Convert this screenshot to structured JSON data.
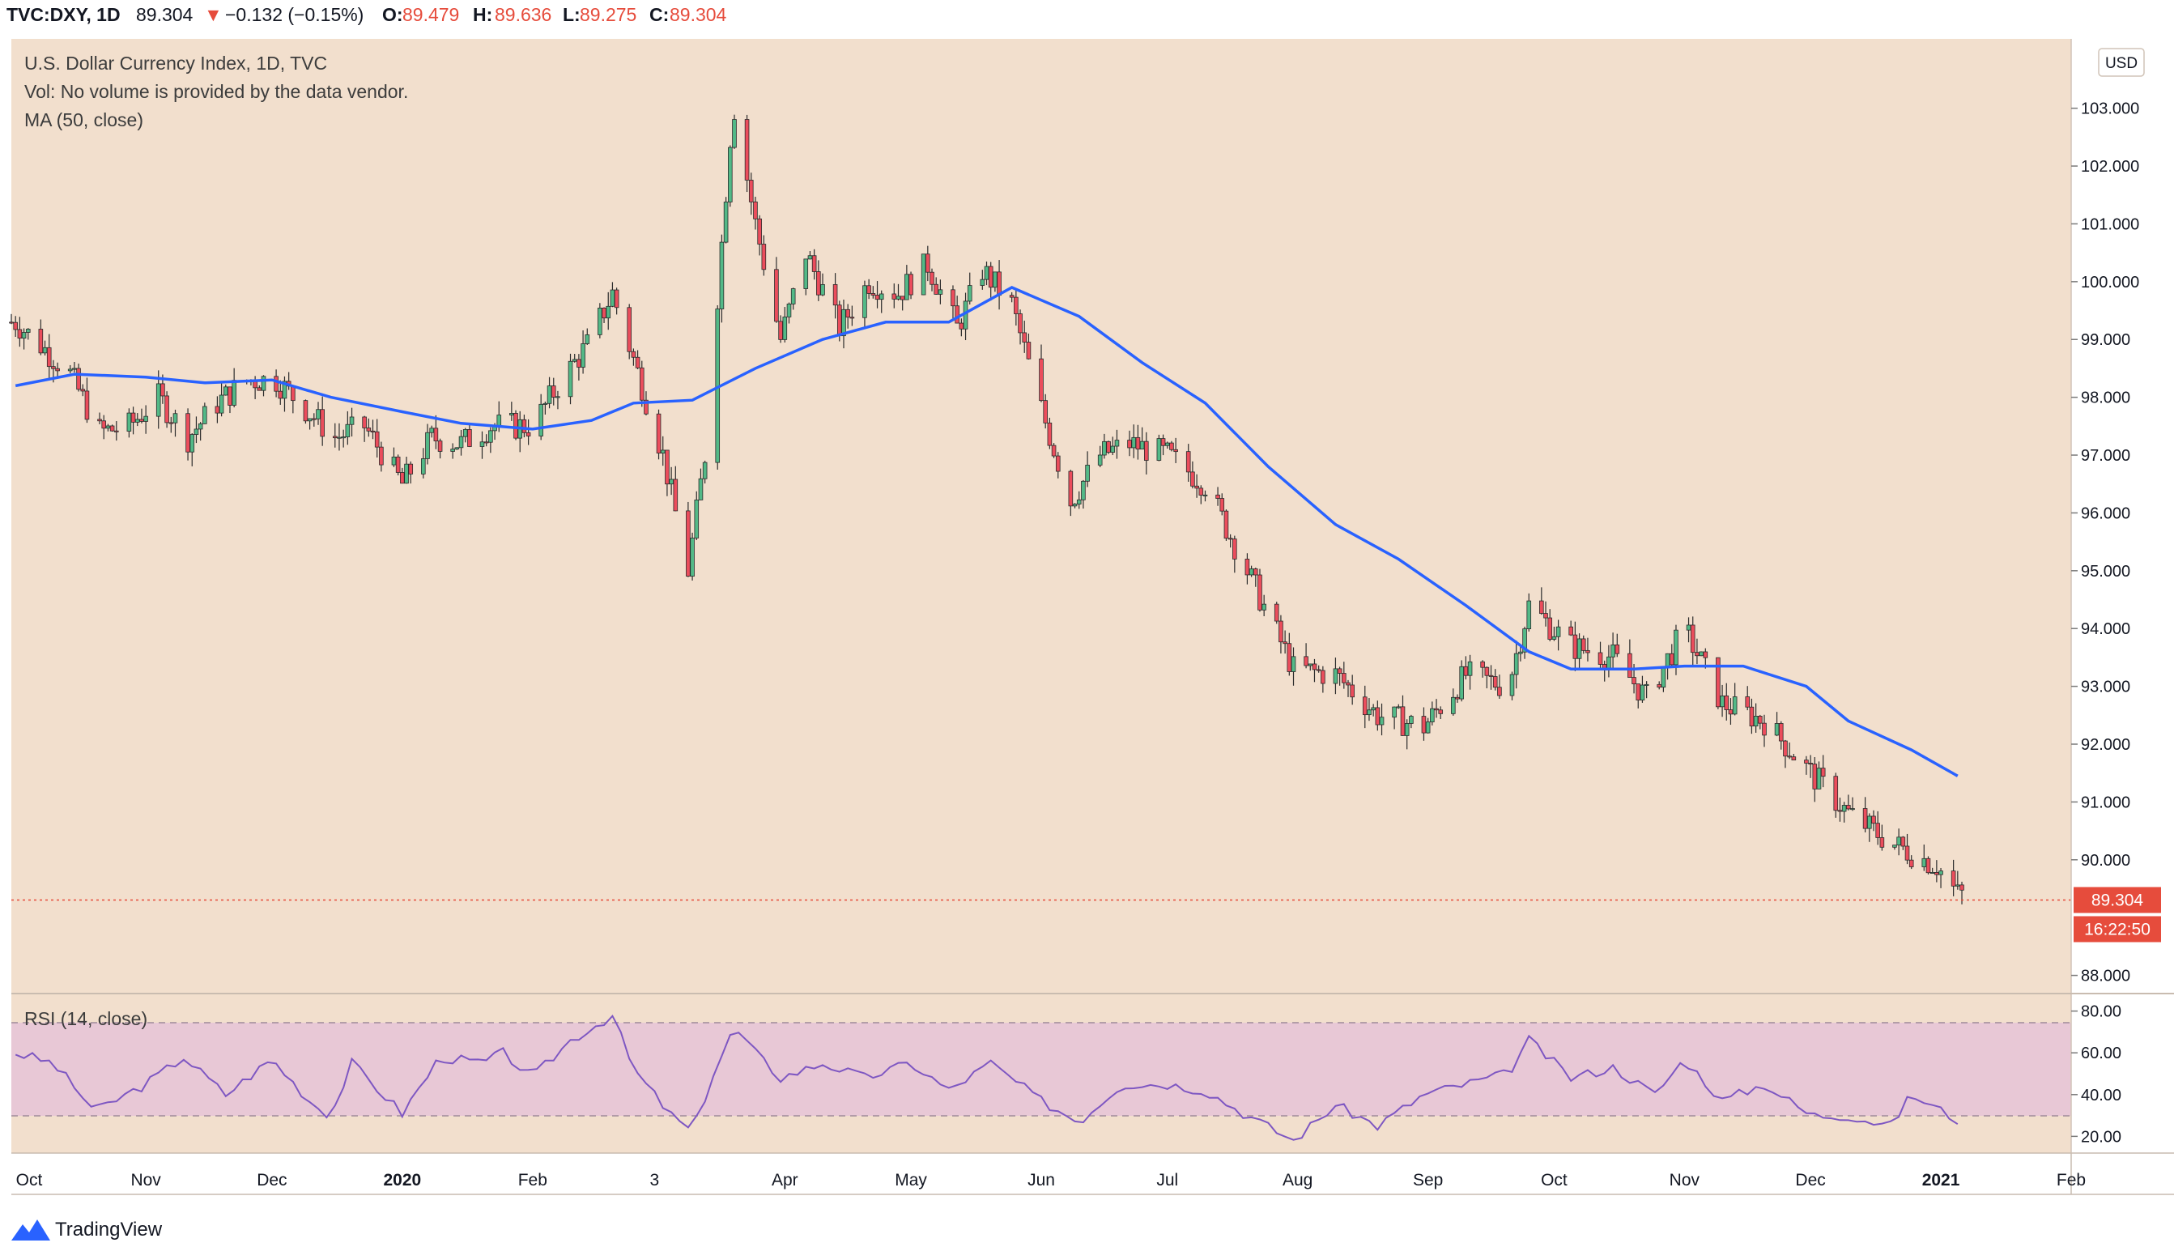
{
  "header": {
    "symbol": "TVC:DXY, 1D",
    "last": "89.304",
    "change_arrow": "▼",
    "change": "−0.132 (−0.15%)",
    "o_label": "O:",
    "o_value": "89.479",
    "h_label": "H:",
    "h_value": "89.636",
    "l_label": "L:",
    "l_value": "89.275",
    "c_label": "C:",
    "c_value": "89.304"
  },
  "legend": {
    "title": "U.S. Dollar Currency Index, 1D, TVC",
    "volume_note": "Vol: No volume is provided by the data vendor.",
    "ma_label": "MA (50, close)",
    "rsi_label": "RSI (14, close)"
  },
  "price_axis": {
    "currency": "USD",
    "ticks": [
      "103.000",
      "102.000",
      "101.000",
      "100.000",
      "99.000",
      "98.000",
      "97.000",
      "96.000",
      "95.000",
      "94.000",
      "93.000",
      "92.000",
      "91.000",
      "90.000",
      "88.000"
    ],
    "last_price_label": "89.304",
    "countdown_label": "16:22:50"
  },
  "rsi_axis": {
    "ticks": [
      "80.00",
      "60.00",
      "40.00",
      "20.00"
    ]
  },
  "time_axis": {
    "ticks": [
      "Oct",
      "Nov",
      "Dec",
      "2020",
      "Feb",
      "3",
      "Apr",
      "May",
      "Jun",
      "Jul",
      "Aug",
      "Sep",
      "Oct",
      "Nov",
      "Dec",
      "2021",
      "Feb"
    ]
  },
  "footer": {
    "brand": "TradingView"
  },
  "colors": {
    "background": "#f2dfcd",
    "up": "#53b987",
    "down": "#eb4d5c",
    "ma": "#2962ff",
    "rsi_line": "#7e57c2",
    "rsi_band": "#e8c8d6",
    "last_price": "#e64c3c"
  },
  "chart_data": {
    "type": "candlestick",
    "x_range": [
      "2019-09-30",
      "2021-02-01"
    ],
    "y_range": [
      87.7,
      104.2
    ],
    "last_close": 89.304,
    "series": [
      {
        "name": "DXY",
        "kind": "candlestick_close_path",
        "points": [
          [
            "2019-10-01",
            99.3
          ],
          [
            "2019-10-07",
            98.9
          ],
          [
            "2019-10-14",
            98.4
          ],
          [
            "2019-10-21",
            97.4
          ],
          [
            "2019-10-28",
            97.5
          ],
          [
            "2019-11-04",
            98.0
          ],
          [
            "2019-11-11",
            97.3
          ],
          [
            "2019-11-18",
            97.9
          ],
          [
            "2019-11-25",
            98.3
          ],
          [
            "2019-12-02",
            98.3
          ],
          [
            "2019-12-09",
            97.8
          ],
          [
            "2019-12-16",
            97.3
          ],
          [
            "2019-12-23",
            97.5
          ],
          [
            "2020-01-01",
            96.5
          ],
          [
            "2020-01-08",
            97.3
          ],
          [
            "2020-01-15",
            97.2
          ],
          [
            "2020-01-22",
            97.5
          ],
          [
            "2020-02-01",
            97.5
          ],
          [
            "2020-02-07",
            98.2
          ],
          [
            "2020-02-14",
            98.9
          ],
          [
            "2020-02-20",
            99.8
          ],
          [
            "2020-02-27",
            98.2
          ],
          [
            "2020-03-03",
            97.0
          ],
          [
            "2020-03-09",
            95.0
          ],
          [
            "2020-03-13",
            97.0
          ],
          [
            "2020-03-19",
            102.5
          ],
          [
            "2020-03-20",
            103.0
          ],
          [
            "2020-03-25",
            101.0
          ],
          [
            "2020-03-31",
            99.0
          ],
          [
            "2020-04-06",
            100.5
          ],
          [
            "2020-04-14",
            99.2
          ],
          [
            "2020-04-21",
            100.0
          ],
          [
            "2020-04-28",
            99.8
          ],
          [
            "2020-05-05",
            100.3
          ],
          [
            "2020-05-12",
            99.2
          ],
          [
            "2020-05-18",
            100.2
          ],
          [
            "2020-05-25",
            99.6
          ],
          [
            "2020-06-01",
            97.8
          ],
          [
            "2020-06-08",
            96.2
          ],
          [
            "2020-06-15",
            97.0
          ],
          [
            "2020-06-22",
            97.2
          ],
          [
            "2020-07-01",
            97.0
          ],
          [
            "2020-07-10",
            96.5
          ],
          [
            "2020-07-20",
            95.0
          ],
          [
            "2020-07-31",
            93.3
          ],
          [
            "2020-08-10",
            93.2
          ],
          [
            "2020-08-20",
            92.5
          ],
          [
            "2020-08-31",
            92.3
          ],
          [
            "2020-09-10",
            93.2
          ],
          [
            "2020-09-20",
            93.0
          ],
          [
            "2020-09-25",
            94.4
          ],
          [
            "2020-10-05",
            93.7
          ],
          [
            "2020-10-15",
            93.5
          ],
          [
            "2020-10-23",
            92.8
          ],
          [
            "2020-11-01",
            94.0
          ],
          [
            "2020-11-10",
            92.7
          ],
          [
            "2020-11-20",
            92.4
          ],
          [
            "2020-12-01",
            91.5
          ],
          [
            "2020-12-10",
            90.8
          ],
          [
            "2020-12-20",
            90.3
          ],
          [
            "2020-12-31",
            89.9
          ],
          [
            "2021-01-05",
            89.4
          ]
        ]
      },
      {
        "name": "MA (50, close)",
        "kind": "line",
        "points": [
          [
            "2019-10-01",
            98.2
          ],
          [
            "2019-10-15",
            98.4
          ],
          [
            "2019-11-01",
            98.35
          ],
          [
            "2019-11-15",
            98.25
          ],
          [
            "2019-12-01",
            98.3
          ],
          [
            "2019-12-15",
            98.0
          ],
          [
            "2020-01-01",
            97.75
          ],
          [
            "2020-01-15",
            97.55
          ],
          [
            "2020-02-01",
            97.45
          ],
          [
            "2020-02-15",
            97.6
          ],
          [
            "2020-02-25",
            97.9
          ],
          [
            "2020-03-10",
            97.95
          ],
          [
            "2020-03-25",
            98.5
          ],
          [
            "2020-04-10",
            99.0
          ],
          [
            "2020-04-25",
            99.3
          ],
          [
            "2020-05-10",
            99.3
          ],
          [
            "2020-05-25",
            99.9
          ],
          [
            "2020-06-10",
            99.4
          ],
          [
            "2020-06-25",
            98.6
          ],
          [
            "2020-07-10",
            97.9
          ],
          [
            "2020-07-25",
            96.8
          ],
          [
            "2020-08-10",
            95.8
          ],
          [
            "2020-08-25",
            95.2
          ],
          [
            "2020-09-10",
            94.4
          ],
          [
            "2020-09-25",
            93.6
          ],
          [
            "2020-10-05",
            93.3
          ],
          [
            "2020-10-20",
            93.3
          ],
          [
            "2020-11-01",
            93.35
          ],
          [
            "2020-11-15",
            93.35
          ],
          [
            "2020-11-30",
            93.0
          ],
          [
            "2020-12-10",
            92.4
          ],
          [
            "2020-12-25",
            91.9
          ],
          [
            "2021-01-05",
            91.45
          ]
        ]
      },
      {
        "name": "RSI (14, close)",
        "kind": "line",
        "axis": "rsi",
        "points": [
          [
            "2019-10-01",
            60
          ],
          [
            "2019-10-10",
            55
          ],
          [
            "2019-10-20",
            32
          ],
          [
            "2019-11-01",
            45
          ],
          [
            "2019-11-10",
            58
          ],
          [
            "2019-11-20",
            40
          ],
          [
            "2019-12-01",
            57
          ],
          [
            "2019-12-10",
            37
          ],
          [
            "2019-12-15",
            30
          ],
          [
            "2019-12-20",
            55
          ],
          [
            "2020-01-01",
            31
          ],
          [
            "2020-01-10",
            58
          ],
          [
            "2020-01-20",
            55
          ],
          [
            "2020-01-25",
            60
          ],
          [
            "2020-02-01",
            48
          ],
          [
            "2020-02-10",
            66
          ],
          [
            "2020-02-20",
            78
          ],
          [
            "2020-02-25",
            52
          ],
          [
            "2020-03-05",
            30
          ],
          [
            "2020-03-10",
            22
          ],
          [
            "2020-03-15",
            50
          ],
          [
            "2020-03-20",
            72
          ],
          [
            "2020-03-25",
            60
          ],
          [
            "2020-03-31",
            48
          ],
          [
            "2020-04-10",
            55
          ],
          [
            "2020-04-20",
            48
          ],
          [
            "2020-05-01",
            55
          ],
          [
            "2020-05-10",
            42
          ],
          [
            "2020-05-20",
            55
          ],
          [
            "2020-06-01",
            37
          ],
          [
            "2020-06-10",
            27
          ],
          [
            "2020-06-20",
            45
          ],
          [
            "2020-07-01",
            45
          ],
          [
            "2020-07-10",
            42
          ],
          [
            "2020-07-20",
            30
          ],
          [
            "2020-07-31",
            18
          ],
          [
            "2020-08-10",
            35
          ],
          [
            "2020-08-20",
            25
          ],
          [
            "2020-08-31",
            40
          ],
          [
            "2020-09-10",
            45
          ],
          [
            "2020-09-20",
            50
          ],
          [
            "2020-09-25",
            66
          ],
          [
            "2020-10-05",
            48
          ],
          [
            "2020-10-15",
            53
          ],
          [
            "2020-10-25",
            40
          ],
          [
            "2020-11-01",
            57
          ],
          [
            "2020-11-10",
            37
          ],
          [
            "2020-11-20",
            45
          ],
          [
            "2020-12-01",
            30
          ],
          [
            "2020-12-10",
            30
          ],
          [
            "2020-12-20",
            25
          ],
          [
            "2020-12-25",
            40
          ],
          [
            "2021-01-05",
            28
          ]
        ]
      }
    ],
    "rsi_band": [
      30,
      70
    ]
  }
}
